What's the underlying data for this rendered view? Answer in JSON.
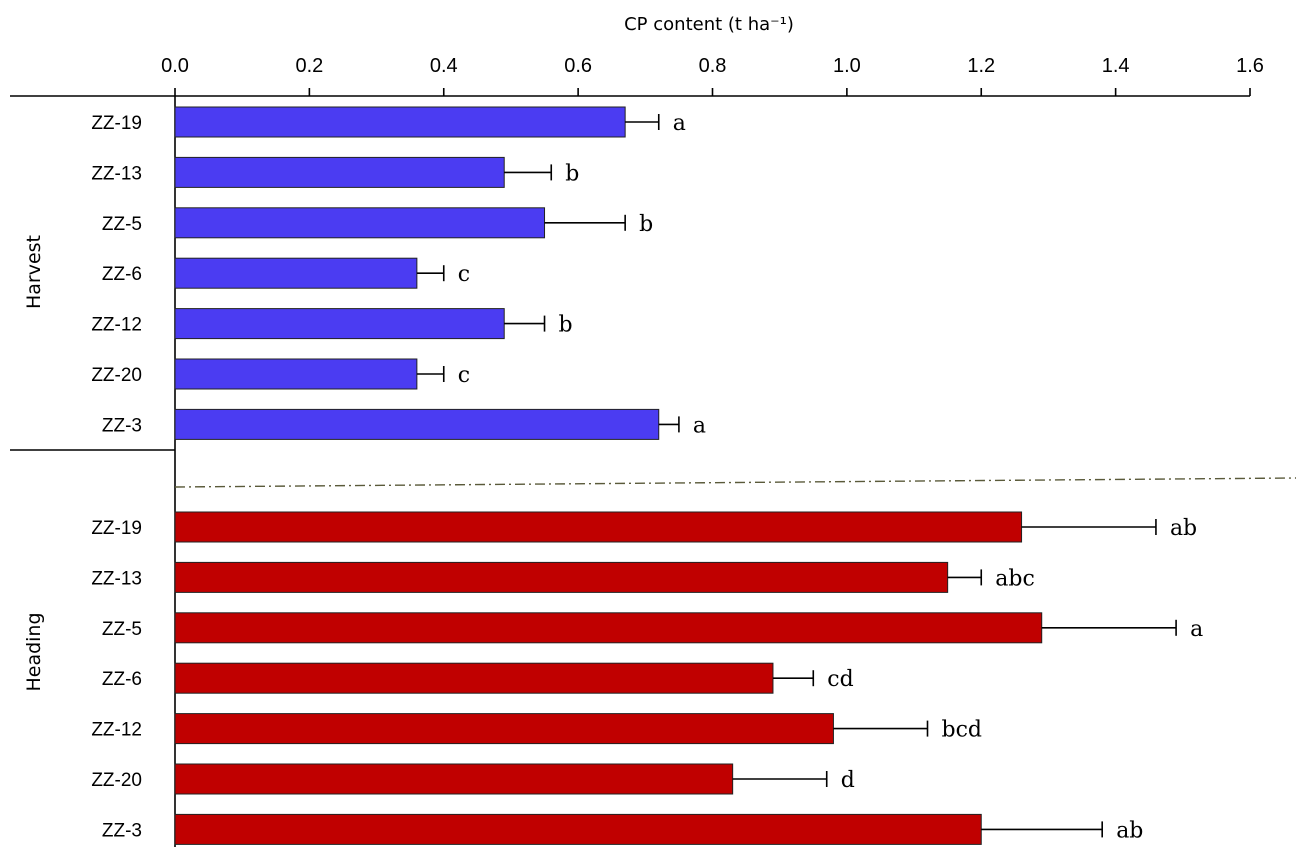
{
  "chart_data": {
    "type": "bar",
    "orientation": "horizontal",
    "xlabel": "CP content (t ha⁻¹)",
    "xlim": [
      0,
      1.6
    ],
    "xticks": [
      "0.0",
      "0.2",
      "0.4",
      "0.6",
      "0.8",
      "1.0",
      "1.2",
      "1.4",
      "1.6"
    ],
    "grid": false,
    "groups": [
      {
        "name": "Harvest",
        "color": "#4b3cf2",
        "categories": [
          "ZZ-19",
          "ZZ-13",
          "ZZ-5",
          "ZZ-6",
          "ZZ-12",
          "ZZ-20",
          "ZZ-3"
        ],
        "values": [
          0.67,
          0.49,
          0.55,
          0.36,
          0.49,
          0.36,
          0.72
        ],
        "errors": [
          0.05,
          0.07,
          0.12,
          0.04,
          0.06,
          0.04,
          0.03
        ],
        "letters": [
          "a",
          "b",
          "b",
          "c",
          "b",
          "c",
          "a"
        ]
      },
      {
        "name": "Heading",
        "color": "#c00000",
        "categories": [
          "ZZ-19",
          "ZZ-13",
          "ZZ-5",
          "ZZ-6",
          "ZZ-12",
          "ZZ-20",
          "ZZ-3"
        ],
        "values": [
          1.26,
          1.15,
          1.29,
          0.89,
          0.98,
          0.83,
          1.2
        ],
        "errors": [
          0.2,
          0.05,
          0.2,
          0.06,
          0.14,
          0.14,
          0.18
        ],
        "letters": [
          "ab",
          "abc",
          "a",
          "cd",
          "bcd",
          "d",
          "ab"
        ]
      }
    ]
  }
}
